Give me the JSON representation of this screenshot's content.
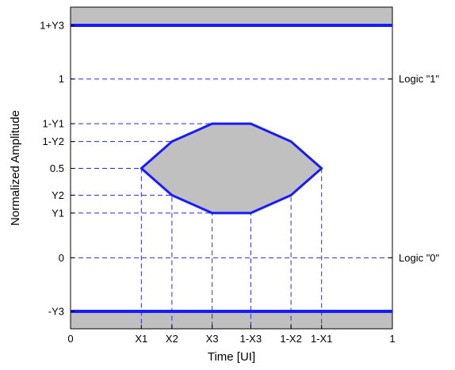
{
  "diagram": {
    "y_axis_title": "Normalized Amplitude",
    "x_axis_title": "Time [UI]",
    "x_ticks": [
      {
        "label": "0",
        "value": 0
      },
      {
        "label": "X1",
        "value": 0.22
      },
      {
        "label": "X2",
        "value": 0.315
      },
      {
        "label": "X3",
        "value": 0.44
      },
      {
        "label": "1-X3",
        "value": 0.56
      },
      {
        "label": "1-X2",
        "value": 0.685
      },
      {
        "label": "1-X1",
        "value": 0.78
      },
      {
        "label": "1",
        "value": 1
      }
    ],
    "y_ticks": [
      {
        "label": "1+Y3",
        "value": 1.3
      },
      {
        "label": "1",
        "value": 1.0
      },
      {
        "label": "1-Y1",
        "value": 0.75
      },
      {
        "label": "1-Y2",
        "value": 0.65
      },
      {
        "label": "0.5",
        "value": 0.5
      },
      {
        "label": "Y2",
        "value": 0.35
      },
      {
        "label": "Y1",
        "value": 0.25
      },
      {
        "label": "0",
        "value": 0.0
      },
      {
        "label": "-Y3",
        "value": -0.3
      }
    ],
    "logic_labels": [
      {
        "label": "Logic \"1\"",
        "value": 1.0
      },
      {
        "label": "Logic \"0\"",
        "value": 0.0
      }
    ],
    "eye_mask": [
      {
        "x": "X1",
        "y": "0.5"
      },
      {
        "x": "X2",
        "y": "1-Y2"
      },
      {
        "x": "X3",
        "y": "1-Y1"
      },
      {
        "x": "1-X3",
        "y": "1-Y1"
      },
      {
        "x": "1-X2",
        "y": "1-Y2"
      },
      {
        "x": "1-X1",
        "y": "0.5"
      },
      {
        "x": "1-X2",
        "y": "Y2"
      },
      {
        "x": "1-X3",
        "y": "Y1"
      },
      {
        "x": "X3",
        "y": "Y1"
      },
      {
        "x": "X2",
        "y": "Y2"
      }
    ],
    "colors": {
      "mask_line": "#1a1aff",
      "mask_fill": "#c0c0c0",
      "guide_line": "#2a2ae0",
      "frame": "#000000"
    }
  }
}
